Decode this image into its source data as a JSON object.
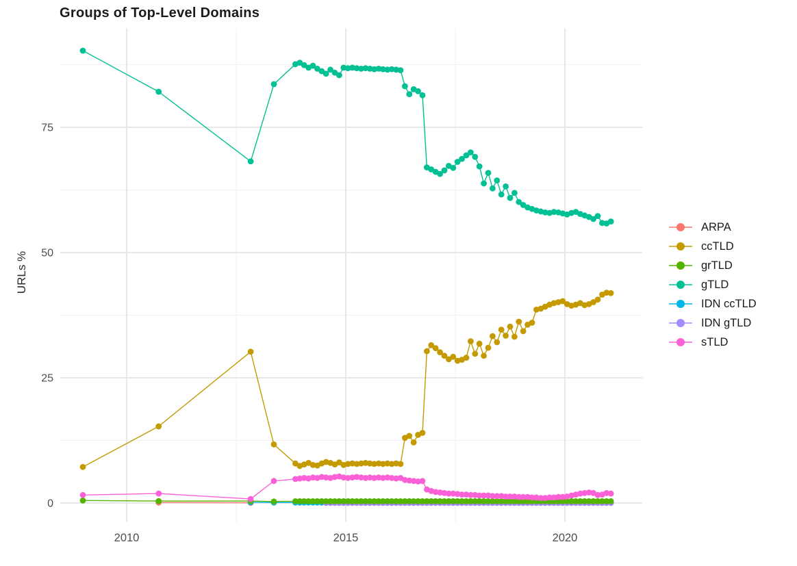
{
  "chart": {
    "title": "Groups of Top-Level Domains",
    "ylabel": "URLs %"
  },
  "chart_data": {
    "type": "line",
    "title": "Groups of Top-Level Domains",
    "xlabel": "",
    "ylabel": "URLs %",
    "x_ticks": [
      2010,
      2015,
      2020
    ],
    "y_ticks": [
      0,
      25,
      50,
      75
    ],
    "xlim": [
      2008.45,
      2021.75
    ],
    "ylim": [
      -4.5,
      94.8
    ],
    "grid": "on",
    "legend_position": "right",
    "dense_x_segments": [
      {
        "start": 2013.85,
        "step": 0.1,
        "count": 25
      },
      {
        "start": 2016.35,
        "step": 0.1,
        "count": 5
      },
      {
        "start": 2016.85,
        "step": 0.1,
        "count": 43
      }
    ],
    "series": [
      {
        "name": "ARPA",
        "color": "#F8766D",
        "x": [
          2010.73,
          2012.83
        ],
        "y": [
          0.1,
          0.05
        ]
      },
      {
        "name": "ccTLD",
        "color": "#C49A00",
        "x_sparse": [
          2009.0,
          2010.73,
          2012.83,
          2013.36
        ],
        "y_sparse": [
          7.2,
          15.3,
          30.2,
          11.7
        ],
        "dense_y": [
          7.9,
          7.4,
          7.7,
          8.0,
          7.6,
          7.5,
          7.9,
          8.2,
          8.0,
          7.7,
          8.1,
          7.6,
          7.8,
          7.9,
          7.8,
          7.9,
          8.0,
          7.9,
          7.8,
          7.9,
          7.8,
          7.9,
          7.8,
          7.9,
          7.8,
          13.0,
          13.4,
          12.1,
          13.6,
          14.0,
          30.3,
          31.5,
          30.9,
          30.1,
          29.4,
          28.7,
          29.2,
          28.4,
          28.6,
          29.0,
          32.3,
          29.8,
          31.8,
          29.4,
          31.0,
          33.3,
          32.1,
          34.6,
          33.4,
          35.2,
          33.2,
          36.2,
          34.3,
          35.6,
          36.0,
          38.6,
          38.8,
          39.2,
          39.6,
          39.9,
          40.1,
          40.3,
          39.7,
          39.4,
          39.6,
          39.9,
          39.5,
          39.7,
          40.1,
          40.6,
          41.6,
          42.0,
          41.9
        ]
      },
      {
        "name": "grTLD",
        "color": "#53B400",
        "x_sparse": [
          2009.0,
          2010.73,
          2012.83,
          2013.36
        ],
        "y_sparse": [
          0.5,
          0.4,
          0.4,
          0.3
        ],
        "dense_y_const": 0.35
      },
      {
        "name": "gTLD",
        "color": "#00C094",
        "x_sparse": [
          2009.0,
          2010.73,
          2012.83,
          2013.36
        ],
        "y_sparse": [
          90.3,
          82.1,
          68.2,
          83.6
        ],
        "dense_y": [
          87.6,
          87.9,
          87.4,
          86.9,
          87.3,
          86.7,
          86.2,
          85.7,
          86.5,
          85.9,
          85.4,
          86.9,
          86.8,
          86.9,
          86.8,
          86.7,
          86.8,
          86.7,
          86.6,
          86.7,
          86.6,
          86.5,
          86.6,
          86.5,
          86.4,
          83.2,
          81.6,
          82.6,
          82.2,
          81.4,
          67.0,
          66.6,
          66.1,
          65.7,
          66.4,
          67.3,
          66.9,
          68.1,
          68.7,
          69.4,
          70.0,
          69.1,
          67.2,
          63.8,
          65.9,
          62.8,
          64.4,
          61.6,
          63.2,
          60.9,
          61.9,
          60.1,
          59.5,
          59.0,
          58.7,
          58.4,
          58.2,
          58.0,
          57.9,
          58.1,
          58.0,
          57.8,
          57.6,
          57.9,
          58.1,
          57.7,
          57.4,
          57.1,
          56.7,
          57.3,
          55.9,
          55.8,
          56.2
        ]
      },
      {
        "name": "IDN ccTLD",
        "color": "#00B6EB",
        "x_sparse": [
          2012.83,
          2013.36
        ],
        "y_sparse": [
          0.15,
          0.1
        ],
        "dense_y_const": 0.1
      },
      {
        "name": "IDN gTLD",
        "color": "#A58AFF",
        "x_sparse": [],
        "y_sparse": [],
        "dense_from_index": 7,
        "dense_y_const": 0.02
      },
      {
        "name": "sTLD",
        "color": "#FB61D7",
        "x_sparse": [
          2009.0,
          2010.73,
          2012.83,
          2013.36
        ],
        "y_sparse": [
          1.6,
          1.9,
          0.8,
          4.4
        ],
        "dense_y": [
          4.8,
          4.9,
          5.0,
          4.9,
          5.1,
          5.0,
          5.2,
          5.1,
          5.0,
          5.2,
          5.3,
          5.1,
          5.0,
          5.1,
          5.2,
          5.1,
          5.0,
          5.1,
          5.0,
          5.1,
          5.0,
          5.1,
          5.0,
          4.9,
          5.0,
          4.6,
          4.5,
          4.4,
          4.3,
          4.4,
          2.7,
          2.4,
          2.2,
          2.1,
          2.0,
          1.9,
          1.9,
          1.8,
          1.7,
          1.7,
          1.6,
          1.6,
          1.5,
          1.5,
          1.5,
          1.4,
          1.4,
          1.4,
          1.3,
          1.3,
          1.3,
          1.2,
          1.2,
          1.2,
          1.1,
          1.1,
          1.0,
          1.0,
          1.1,
          1.1,
          1.2,
          1.2,
          1.3,
          1.5,
          1.7,
          1.9,
          2.0,
          2.1,
          2.0,
          1.6,
          1.7,
          2.0,
          1.9
        ]
      }
    ]
  }
}
